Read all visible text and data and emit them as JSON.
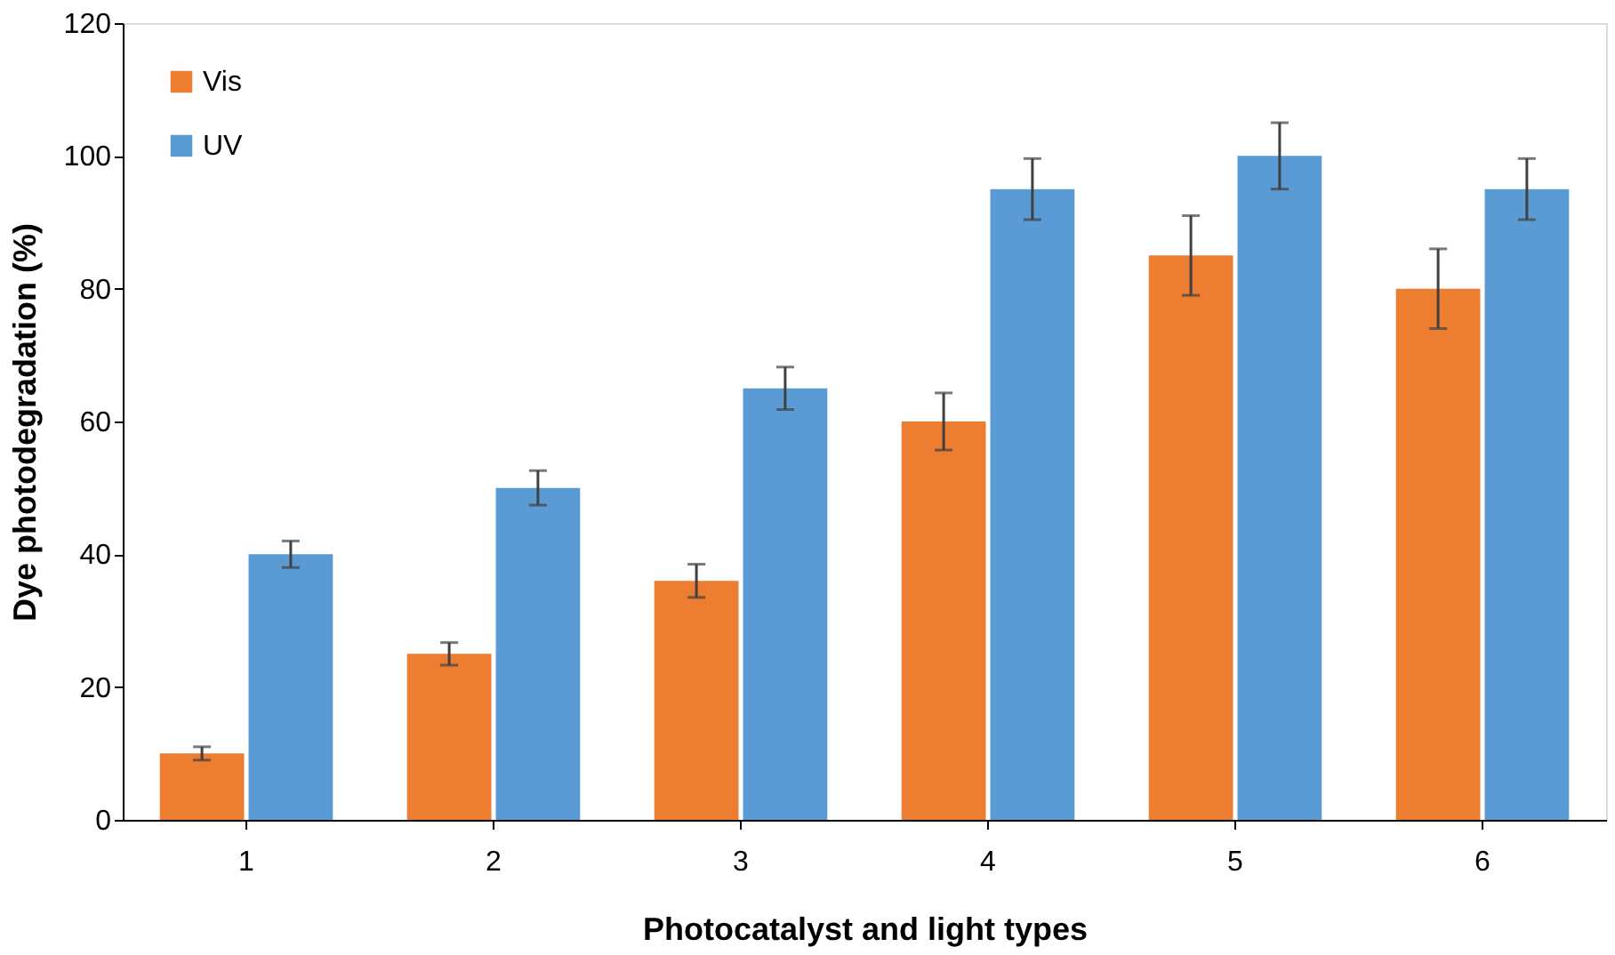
{
  "chart_data": {
    "type": "bar",
    "xlabel": "Photocatalyst and light types",
    "ylabel": "Dye photodegradation (%)",
    "categories": [
      "1",
      "2",
      "3",
      "4",
      "5",
      "6"
    ],
    "series": [
      {
        "name": "Vis",
        "color": "#ed7d31",
        "values": [
          10,
          25,
          36,
          60,
          85,
          80
        ],
        "errors": [
          1,
          1.7,
          2.5,
          4.3,
          6,
          6
        ]
      },
      {
        "name": "UV",
        "color": "#5b9bd5",
        "values": [
          40,
          50,
          65,
          95,
          100,
          95
        ],
        "errors": [
          2,
          2.6,
          3.2,
          4.6,
          5,
          4.6
        ]
      }
    ],
    "ylim": [
      0,
      120
    ],
    "yticks": [
      0,
      20,
      40,
      60,
      80,
      100,
      120
    ],
    "grid": false,
    "legend": "top left"
  }
}
